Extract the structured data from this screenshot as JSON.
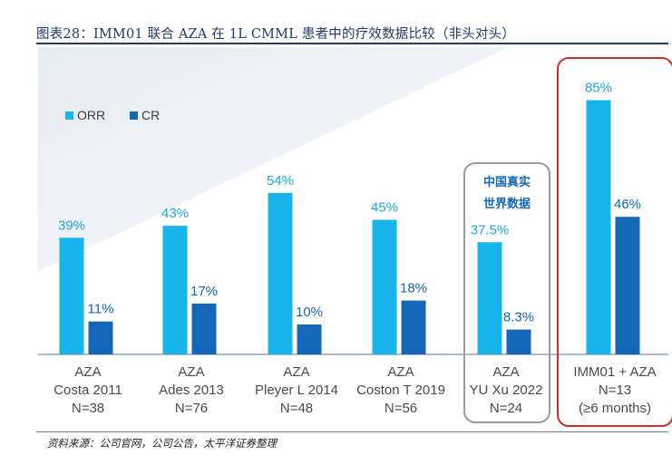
{
  "figure_title": "图表28：IMM01 联合 AZA 在 1L CMML 患者中的疗效数据比较（非头对头）",
  "source": "资料来源：公司官网，公司公告，太平洋证券整理",
  "colors": {
    "orr": "#18b4ec",
    "cr": "#1466b8",
    "label_orr": "#18a8e4",
    "label_cr": "#1466b8",
    "category_text": "#4a4a4a",
    "highlight_real_world": "#9a9a9a",
    "highlight_imm01": "#d42a2a",
    "background_band": "#eef1f6"
  },
  "chart_data": {
    "type": "bar",
    "title": "",
    "xlabel": "",
    "ylabel": "",
    "ylim": [
      0,
      100
    ],
    "grid": false,
    "legend_position": "top-left",
    "categories": [
      [
        "AZA",
        "Costa 2011",
        "N=38"
      ],
      [
        "AZA",
        "Ades 2013",
        "N=76"
      ],
      [
        "AZA",
        "Pleyer L 2014",
        "N=48"
      ],
      [
        "AZA",
        "Coston T 2019",
        "N=56"
      ],
      [
        "AZA",
        "YU Xu 2022",
        "N=24"
      ],
      [
        "IMM01 + AZA",
        "N=13",
        "(≥6 months)"
      ]
    ],
    "series": [
      {
        "name": "ORR",
        "values": [
          39,
          43,
          54,
          45,
          37.5,
          85
        ],
        "labels": [
          "39%",
          "43%",
          "54%",
          "45%",
          "37.5%",
          "85%"
        ]
      },
      {
        "name": "CR",
        "values": [
          11,
          17,
          10,
          18,
          8.3,
          46
        ],
        "labels": [
          "11%",
          "17%",
          "10%",
          "18%",
          "8.3%",
          "46%"
        ]
      }
    ],
    "annotations": [
      {
        "text": [
          "中国真实",
          "世界数据"
        ],
        "category_index": 4,
        "style": "gray-box"
      },
      {
        "text": [],
        "category_index": 5,
        "style": "red-box"
      }
    ]
  }
}
